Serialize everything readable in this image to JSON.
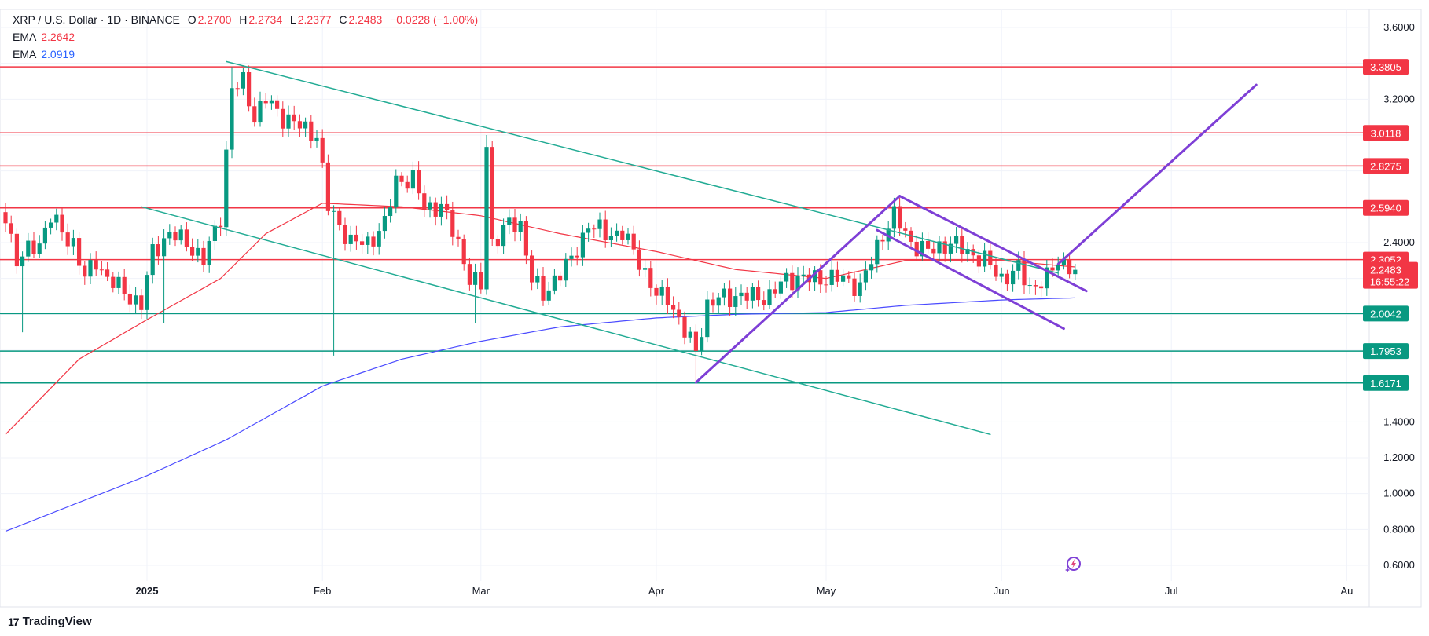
{
  "header": {
    "symbol": "XRP / U.S. Dollar · 1D · BINANCE",
    "o_label": "O",
    "o": "2.2700",
    "h_label": "H",
    "h": "2.2734",
    "l_label": "L",
    "l": "2.2377",
    "c_label": "C",
    "c": "2.2483",
    "change": "−0.0228 (−1.00%)",
    "ema1_label": "EMA",
    "ema1": "2.2642",
    "ema2_label": "EMA",
    "ema2": "2.0919"
  },
  "colors": {
    "up": "#089981",
    "down": "#f23645",
    "ema_fast": "#f23645",
    "ema_slow": "#4b4bff",
    "trend": "#22ab94",
    "pattern": "#7e3fd6",
    "grid": "#f0f3fa"
  },
  "footer": {
    "brand": "TradingView"
  },
  "chart_data": {
    "type": "candlestick",
    "title": "XRP / U.S. Dollar · 1D · BINANCE",
    "x_unit": "days since 2025-01-01",
    "x_ticks": [
      {
        "label": "2025",
        "day": 0
      },
      {
        "label": "Feb",
        "day": 31
      },
      {
        "label": "Mar",
        "day": 59
      },
      {
        "label": "Apr",
        "day": 90
      },
      {
        "label": "May",
        "day": 120
      },
      {
        "label": "Jun",
        "day": 151
      },
      {
        "label": "Jul",
        "day": 181
      },
      {
        "label": "Au",
        "day": 212
      }
    ],
    "y_ticks": [
      "3.6000",
      "3.2000",
      "2.4000",
      "1.4000",
      "1.2000",
      "1.0000",
      "0.8000",
      "0.6000"
    ],
    "ylim": [
      0.6,
      3.6
    ],
    "close_keypoints": [
      [
        -25,
        2.55
      ],
      [
        -23,
        2.3
      ],
      [
        -21,
        2.35
      ],
      [
        -19,
        2.4
      ],
      [
        -17,
        2.55
      ],
      [
        -15,
        2.45
      ],
      [
        -13,
        2.4
      ],
      [
        -11,
        2.2
      ],
      [
        -9,
        2.3
      ],
      [
        -7,
        2.2
      ],
      [
        -5,
        2.15
      ],
      [
        -3,
        2.1
      ],
      [
        -1,
        2.05
      ],
      [
        1,
        2.35
      ],
      [
        4,
        2.45
      ],
      [
        7,
        2.4
      ],
      [
        10,
        2.3
      ],
      [
        13,
        2.55
      ],
      [
        14,
        2.9
      ],
      [
        15,
        3.25
      ],
      [
        17,
        3.3
      ],
      [
        19,
        3.1
      ],
      [
        21,
        3.2
      ],
      [
        24,
        3.1
      ],
      [
        27,
        3.05
      ],
      [
        30,
        3.0
      ],
      [
        32,
        2.6
      ],
      [
        34,
        2.5
      ],
      [
        36,
        2.4
      ],
      [
        39,
        2.4
      ],
      [
        42,
        2.5
      ],
      [
        44,
        2.75
      ],
      [
        47,
        2.75
      ],
      [
        49,
        2.6
      ],
      [
        52,
        2.6
      ],
      [
        55,
        2.4
      ],
      [
        57,
        2.2
      ],
      [
        59,
        2.15
      ],
      [
        60,
        2.95
      ],
      [
        61,
        2.4
      ],
      [
        64,
        2.5
      ],
      [
        66,
        2.5
      ],
      [
        68,
        2.2
      ],
      [
        70,
        2.1
      ],
      [
        72,
        2.2
      ],
      [
        75,
        2.3
      ],
      [
        78,
        2.5
      ],
      [
        81,
        2.45
      ],
      [
        84,
        2.45
      ],
      [
        87,
        2.3
      ],
      [
        90,
        2.1
      ],
      [
        92,
        2.1
      ],
      [
        95,
        1.9
      ],
      [
        97,
        1.8
      ],
      [
        99,
        2.05
      ],
      [
        102,
        2.1
      ],
      [
        105,
        2.1
      ],
      [
        110,
        2.1
      ],
      [
        113,
        2.2
      ],
      [
        116,
        2.2
      ],
      [
        120,
        2.2
      ],
      [
        123,
        2.2
      ],
      [
        126,
        2.15
      ],
      [
        128,
        2.3
      ],
      [
        130,
        2.45
      ],
      [
        132,
        2.55
      ],
      [
        135,
        2.4
      ],
      [
        138,
        2.35
      ],
      [
        142,
        2.4
      ],
      [
        145,
        2.35
      ],
      [
        148,
        2.3
      ],
      [
        151,
        2.2
      ],
      [
        154,
        2.25
      ],
      [
        156,
        2.15
      ],
      [
        159,
        2.2
      ],
      [
        161,
        2.3
      ],
      [
        163,
        2.27
      ],
      [
        164,
        2.2483
      ]
    ],
    "wicks": [
      {
        "day": -22,
        "low": 1.9
      },
      {
        "day": 3,
        "low": 1.95
      },
      {
        "day": 15,
        "high": 3.38
      },
      {
        "day": 33,
        "low": 1.77
      },
      {
        "day": 60,
        "high": 3.0
      },
      {
        "day": 58,
        "low": 1.95
      },
      {
        "day": 97,
        "low": 1.62
      },
      {
        "day": 132,
        "high": 2.65
      }
    ],
    "ema_fast": {
      "name": "EMA",
      "keypoints": [
        [
          -25,
          1.33
        ],
        [
          -12,
          1.75
        ],
        [
          0,
          1.97
        ],
        [
          13,
          2.2
        ],
        [
          21,
          2.45
        ],
        [
          31,
          2.62
        ],
        [
          45,
          2.6
        ],
        [
          59,
          2.55
        ],
        [
          73,
          2.45
        ],
        [
          90,
          2.35
        ],
        [
          104,
          2.25
        ],
        [
          120,
          2.2
        ],
        [
          134,
          2.3
        ],
        [
          151,
          2.3
        ],
        [
          164,
          2.2642
        ]
      ]
    },
    "ema_slow": {
      "name": "EMA",
      "keypoints": [
        [
          -25,
          0.79
        ],
        [
          0,
          1.1
        ],
        [
          14,
          1.3
        ],
        [
          31,
          1.6
        ],
        [
          45,
          1.75
        ],
        [
          59,
          1.85
        ],
        [
          73,
          1.93
        ],
        [
          90,
          1.98
        ],
        [
          104,
          2.0
        ],
        [
          120,
          2.01
        ],
        [
          134,
          2.05
        ],
        [
          151,
          2.08
        ],
        [
          164,
          2.0919
        ]
      ]
    },
    "horizontal_levels": [
      {
        "price": 3.3805,
        "label": "3.3805",
        "kind": "resistance"
      },
      {
        "price": 3.0118,
        "label": "3.0118",
        "kind": "resistance"
      },
      {
        "price": 2.8275,
        "label": "2.8275",
        "kind": "resistance"
      },
      {
        "price": 2.594,
        "label": "2.5940",
        "kind": "resistance"
      },
      {
        "price": 2.3052,
        "label": "2.3052",
        "kind": "resistance"
      },
      {
        "price": 2.0042,
        "label": "2.0042",
        "kind": "support"
      },
      {
        "price": 1.7953,
        "label": "1.7953",
        "kind": "support"
      },
      {
        "price": 1.6171,
        "label": "1.6171",
        "kind": "support"
      }
    ],
    "last_price": {
      "price": 2.2483,
      "label": "2.2483",
      "countdown": "16:55:22"
    },
    "trendlines": [
      {
        "kind": "channel",
        "from": [
          14,
          3.41
        ],
        "to": [
          161,
          2.23
        ]
      },
      {
        "kind": "channel",
        "from": [
          -1,
          2.6
        ],
        "to": [
          149,
          1.33
        ]
      },
      {
        "kind": "pattern",
        "from": [
          97,
          1.62
        ],
        "to": [
          133,
          2.66
        ]
      },
      {
        "kind": "pattern",
        "from": [
          133,
          2.66
        ],
        "to": [
          166,
          2.13
        ]
      },
      {
        "kind": "pattern",
        "from": [
          129,
          2.47
        ],
        "to": [
          162,
          1.92
        ]
      },
      {
        "kind": "pattern",
        "from": [
          161,
          2.28
        ],
        "to": [
          196,
          3.28
        ]
      }
    ]
  }
}
